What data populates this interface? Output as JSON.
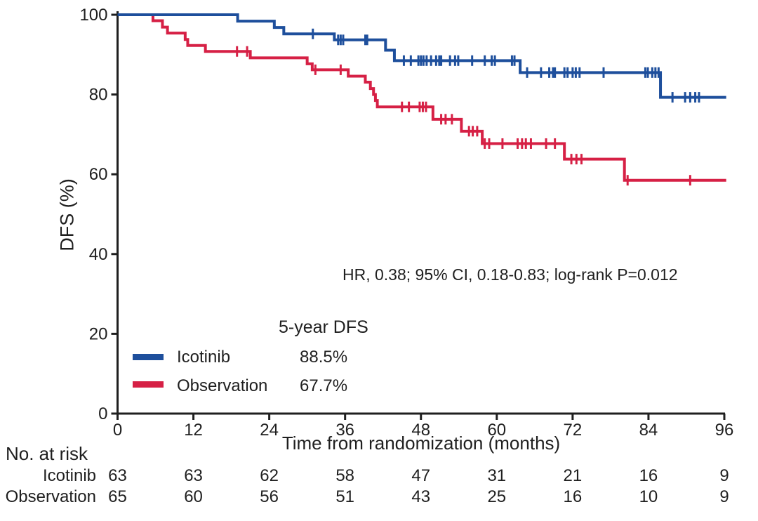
{
  "chart_data": {
    "type": "line",
    "subtype": "kaplan-meier-step-curves",
    "title": "",
    "xlabel": "Time from randomization (months)",
    "ylabel": "DFS (%)",
    "xlim": [
      0,
      96
    ],
    "ylim": [
      0,
      100
    ],
    "xticks": [
      0,
      12,
      24,
      36,
      48,
      60,
      72,
      84,
      96
    ],
    "yticks": [
      0,
      20,
      40,
      60,
      80,
      100
    ],
    "grid": false,
    "axis_color": "#1f1f1f",
    "annotation": "HR, 0.38; 95% CI, 0.18-0.83; log-rank P=0.012",
    "legend": {
      "header": "5-year DFS",
      "position": "lower-left",
      "entries": [
        {
          "label": "Icotinib",
          "value": "88.5%",
          "color": "#1e4f9c"
        },
        {
          "label": "Observation",
          "value": "67.7%",
          "color": "#d62045"
        }
      ]
    },
    "series": [
      {
        "name": "Icotinib",
        "color": "#1e4f9c",
        "end_month": 96.3,
        "steps": [
          [
            0,
            100
          ],
          [
            19,
            98.4
          ],
          [
            24.8,
            96.8
          ],
          [
            26.3,
            95.2
          ],
          [
            34.3,
            93.7
          ],
          [
            42.4,
            91.1
          ],
          [
            43.8,
            88.5
          ],
          [
            63.7,
            85.5
          ],
          [
            85.9,
            79.3
          ]
        ],
        "censor_marks": [
          [
            30.9,
            95.2
          ],
          [
            34.9,
            93.7
          ],
          [
            35.3,
            93.7
          ],
          [
            35.7,
            93.7
          ],
          [
            39.2,
            93.7
          ],
          [
            39.5,
            93.7
          ],
          [
            45.3,
            88.5
          ],
          [
            46.4,
            88.5
          ],
          [
            47.6,
            88.5
          ],
          [
            48.0,
            88.5
          ],
          [
            48.4,
            88.5
          ],
          [
            48.9,
            88.5
          ],
          [
            49.6,
            88.5
          ],
          [
            50.4,
            88.5
          ],
          [
            50.9,
            88.5
          ],
          [
            51.2,
            88.5
          ],
          [
            52.6,
            88.5
          ],
          [
            53.4,
            88.5
          ],
          [
            53.9,
            88.5
          ],
          [
            56.1,
            88.5
          ],
          [
            58.1,
            88.5
          ],
          [
            59.2,
            88.5
          ],
          [
            59.7,
            88.5
          ],
          [
            62.4,
            88.5
          ],
          [
            62.8,
            88.5
          ],
          [
            64.8,
            85.5
          ],
          [
            67.0,
            85.5
          ],
          [
            68.3,
            85.5
          ],
          [
            68.9,
            85.5
          ],
          [
            69.2,
            85.5
          ],
          [
            70.7,
            85.5
          ],
          [
            71.2,
            85.5
          ],
          [
            72.0,
            85.5
          ],
          [
            72.5,
            85.5
          ],
          [
            73.1,
            85.5
          ],
          [
            76.9,
            85.5
          ],
          [
            83.5,
            85.5
          ],
          [
            83.9,
            85.5
          ],
          [
            84.6,
            85.5
          ],
          [
            85.1,
            85.5
          ],
          [
            85.6,
            85.5
          ],
          [
            87.8,
            79.3
          ],
          [
            89.8,
            79.3
          ],
          [
            90.6,
            79.3
          ],
          [
            91.4,
            79.3
          ],
          [
            92.0,
            79.3
          ]
        ]
      },
      {
        "name": "Observation",
        "color": "#d62045",
        "end_month": 96.3,
        "steps": [
          [
            0,
            100
          ],
          [
            5.6,
            98.5
          ],
          [
            7.1,
            96.9
          ],
          [
            7.9,
            95.4
          ],
          [
            10.7,
            93.8
          ],
          [
            11.1,
            92.3
          ],
          [
            13.9,
            90.8
          ],
          [
            21.0,
            89.2
          ],
          [
            30.0,
            87.7
          ],
          [
            30.8,
            86.2
          ],
          [
            36.5,
            84.6
          ],
          [
            39.2,
            83.1
          ],
          [
            40.0,
            81.5
          ],
          [
            40.5,
            80.0
          ],
          [
            40.8,
            78.5
          ],
          [
            41.1,
            76.9
          ],
          [
            49.9,
            73.8
          ],
          [
            54.4,
            70.8
          ],
          [
            57.7,
            67.7
          ],
          [
            70.7,
            63.8
          ],
          [
            80.2,
            58.5
          ]
        ],
        "censor_marks": [
          [
            18.9,
            90.8
          ],
          [
            20.5,
            90.8
          ],
          [
            31.3,
            86.2
          ],
          [
            35.3,
            86.2
          ],
          [
            45.0,
            76.9
          ],
          [
            46.1,
            76.9
          ],
          [
            47.8,
            76.9
          ],
          [
            48.3,
            76.9
          ],
          [
            48.8,
            76.9
          ],
          [
            51.2,
            73.8
          ],
          [
            51.9,
            73.8
          ],
          [
            52.9,
            73.8
          ],
          [
            55.6,
            70.8
          ],
          [
            56.2,
            70.8
          ],
          [
            56.9,
            70.8
          ],
          [
            58.1,
            67.7
          ],
          [
            58.8,
            67.7
          ],
          [
            60.9,
            67.7
          ],
          [
            63.3,
            67.7
          ],
          [
            64.0,
            67.7
          ],
          [
            64.6,
            67.7
          ],
          [
            65.4,
            67.7
          ],
          [
            67.8,
            67.7
          ],
          [
            69.2,
            67.7
          ],
          [
            71.8,
            63.8
          ],
          [
            72.6,
            63.8
          ],
          [
            73.4,
            63.8
          ],
          [
            80.7,
            58.5
          ],
          [
            90.6,
            58.5
          ]
        ]
      }
    ],
    "risk_table": {
      "title": "No. at risk",
      "time_points": [
        0,
        12,
        24,
        36,
        48,
        60,
        72,
        84,
        96
      ],
      "rows": [
        {
          "label": "Icotinib",
          "counts": [
            63,
            63,
            62,
            58,
            47,
            31,
            21,
            16,
            9
          ]
        },
        {
          "label": "Observation",
          "counts": [
            65,
            60,
            56,
            51,
            43,
            25,
            16,
            10,
            9
          ]
        }
      ]
    }
  }
}
